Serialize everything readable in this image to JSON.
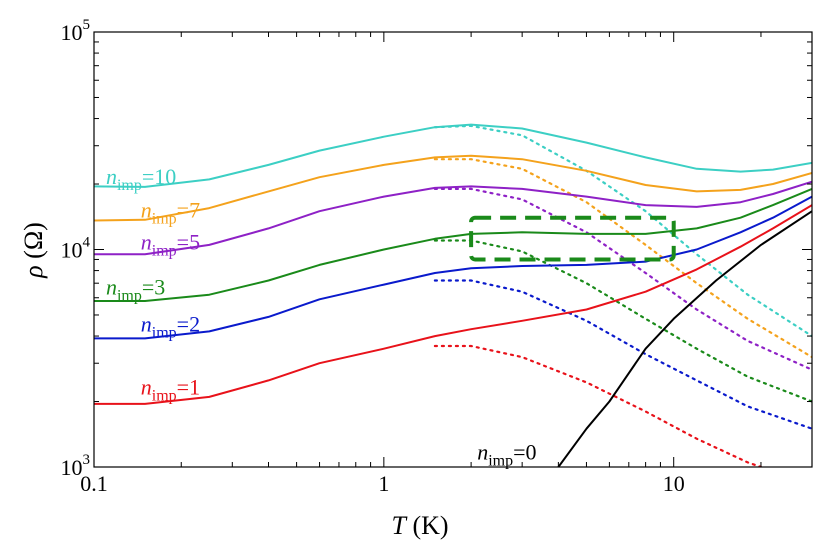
{
  "chart_data": {
    "type": "line",
    "xscale": "log",
    "yscale": "log",
    "xlim": [
      0.1,
      30
    ],
    "ylim": [
      1000,
      100000
    ],
    "xlabel": {
      "symbol": "T",
      "unit": " (K)"
    },
    "ylabel": {
      "symbol": "ρ",
      "unit": " (Ω)"
    },
    "xticks": [
      {
        "value": 0.1,
        "label": "0.1"
      },
      {
        "value": 1,
        "label": "1"
      },
      {
        "value": 10,
        "label": "10"
      }
    ],
    "yticks": [
      {
        "value": 1000,
        "base": "10",
        "exp": "3"
      },
      {
        "value": 10000,
        "base": "10",
        "exp": "4"
      },
      {
        "value": 100000,
        "base": "10",
        "exp": "5"
      }
    ],
    "grid": false,
    "legend": "inline labels",
    "annotation_box": {
      "x": [
        2,
        10
      ],
      "y": [
        9000,
        14000
      ],
      "color": "#1a8a1a",
      "style": "dashed"
    },
    "series": [
      {
        "label_main": "n",
        "label_sub": "imp",
        "label_val": "=10",
        "color": "#3ccfc4",
        "label_at": [
          0.11,
          20000
        ],
        "solid": [
          [
            0.1,
            19500
          ],
          [
            0.15,
            19400
          ],
          [
            0.25,
            21000
          ],
          [
            0.4,
            24500
          ],
          [
            0.6,
            28500
          ],
          [
            1,
            33000
          ],
          [
            1.5,
            36500
          ],
          [
            2,
            37500
          ],
          [
            3,
            36000
          ],
          [
            5,
            31000
          ],
          [
            8,
            26500
          ],
          [
            12,
            23500
          ],
          [
            17,
            22800
          ],
          [
            22,
            23300
          ],
          [
            30,
            25000
          ]
        ],
        "dotted": [
          [
            1.5,
            36500
          ],
          [
            2,
            37000
          ],
          [
            3,
            33500
          ],
          [
            5,
            23000
          ],
          [
            8,
            15000
          ],
          [
            12,
            9500
          ],
          [
            18,
            6200
          ],
          [
            30,
            4000
          ]
        ]
      },
      {
        "label_main": "n",
        "label_sub": "imp",
        "label_val": "=7",
        "color": "#f4a21c",
        "label_at": [
          0.145,
          14000
        ],
        "solid": [
          [
            0.1,
            13600
          ],
          [
            0.15,
            13700
          ],
          [
            0.25,
            15500
          ],
          [
            0.4,
            18500
          ],
          [
            0.6,
            21500
          ],
          [
            1,
            24500
          ],
          [
            1.5,
            26500
          ],
          [
            2,
            27000
          ],
          [
            3,
            26000
          ],
          [
            5,
            23000
          ],
          [
            8,
            19800
          ],
          [
            12,
            18500
          ],
          [
            17,
            18800
          ],
          [
            22,
            20000
          ],
          [
            30,
            22500
          ]
        ],
        "dotted": [
          [
            1.5,
            26000
          ],
          [
            2,
            26000
          ],
          [
            3,
            23500
          ],
          [
            5,
            16500
          ],
          [
            8,
            10500
          ],
          [
            12,
            7000
          ],
          [
            18,
            4800
          ],
          [
            30,
            3200
          ]
        ]
      },
      {
        "label_main": "n",
        "label_sub": "imp",
        "label_val": "=5",
        "color": "#8e21c6",
        "label_at": [
          0.145,
          10000
        ],
        "solid": [
          [
            0.1,
            9500
          ],
          [
            0.15,
            9500
          ],
          [
            0.25,
            10500
          ],
          [
            0.4,
            12500
          ],
          [
            0.6,
            15000
          ],
          [
            1,
            17500
          ],
          [
            1.5,
            19200
          ],
          [
            2,
            19500
          ],
          [
            3,
            19000
          ],
          [
            5,
            17500
          ],
          [
            8,
            16000
          ],
          [
            12,
            15700
          ],
          [
            17,
            16500
          ],
          [
            22,
            18000
          ],
          [
            30,
            20500
          ]
        ],
        "dotted": [
          [
            1.5,
            19000
          ],
          [
            2,
            19000
          ],
          [
            3,
            17000
          ],
          [
            5,
            12000
          ],
          [
            8,
            7800
          ],
          [
            12,
            5300
          ],
          [
            18,
            3800
          ],
          [
            30,
            2800
          ]
        ]
      },
      {
        "label_main": "n",
        "label_sub": "imp",
        "label_val": "=3",
        "color": "#1a8a1a",
        "label_at": [
          0.11,
          6200
        ],
        "solid": [
          [
            0.1,
            5800
          ],
          [
            0.15,
            5800
          ],
          [
            0.25,
            6200
          ],
          [
            0.4,
            7200
          ],
          [
            0.6,
            8500
          ],
          [
            1,
            10000
          ],
          [
            1.5,
            11200
          ],
          [
            2,
            11800
          ],
          [
            3,
            12000
          ],
          [
            5,
            11800
          ],
          [
            8,
            11800
          ],
          [
            12,
            12500
          ],
          [
            17,
            14000
          ],
          [
            22,
            16000
          ],
          [
            30,
            19000
          ]
        ],
        "dotted": [
          [
            1.5,
            11000
          ],
          [
            2,
            11000
          ],
          [
            3,
            9800
          ],
          [
            5,
            7000
          ],
          [
            8,
            4800
          ],
          [
            12,
            3500
          ],
          [
            18,
            2600
          ],
          [
            30,
            2000
          ]
        ]
      },
      {
        "label_main": "n",
        "label_sub": "imp",
        "label_val": "=2",
        "color": "#0a1acc",
        "label_at": [
          0.145,
          4200
        ],
        "solid": [
          [
            0.1,
            3900
          ],
          [
            0.15,
            3900
          ],
          [
            0.25,
            4200
          ],
          [
            0.4,
            4900
          ],
          [
            0.6,
            5900
          ],
          [
            1,
            6900
          ],
          [
            1.5,
            7800
          ],
          [
            2,
            8200
          ],
          [
            3,
            8400
          ],
          [
            5,
            8500
          ],
          [
            8,
            8800
          ],
          [
            12,
            10000
          ],
          [
            17,
            12000
          ],
          [
            22,
            14000
          ],
          [
            30,
            17500
          ]
        ],
        "dotted": [
          [
            1.5,
            7200
          ],
          [
            2,
            7200
          ],
          [
            3,
            6400
          ],
          [
            5,
            4700
          ],
          [
            8,
            3300
          ],
          [
            12,
            2500
          ],
          [
            18,
            1900
          ],
          [
            30,
            1500
          ]
        ]
      },
      {
        "label_main": "n",
        "label_sub": "imp",
        "label_val": "=1",
        "color": "#e8121a",
        "label_at": [
          0.145,
          2150
        ],
        "solid": [
          [
            0.1,
            1950
          ],
          [
            0.15,
            1950
          ],
          [
            0.25,
            2100
          ],
          [
            0.4,
            2500
          ],
          [
            0.6,
            3000
          ],
          [
            1,
            3500
          ],
          [
            1.5,
            4000
          ],
          [
            2,
            4300
          ],
          [
            3,
            4700
          ],
          [
            5,
            5300
          ],
          [
            8,
            6400
          ],
          [
            12,
            8100
          ],
          [
            17,
            10300
          ],
          [
            22,
            12500
          ],
          [
            30,
            16000
          ]
        ],
        "dotted": [
          [
            1.5,
            3600
          ],
          [
            2,
            3600
          ],
          [
            3,
            3200
          ],
          [
            5,
            2450
          ],
          [
            8,
            1800
          ],
          [
            12,
            1350
          ],
          [
            18,
            1050
          ],
          [
            20,
            1000
          ]
        ]
      },
      {
        "label_main": "n",
        "label_sub": "imp",
        "label_val": "=0",
        "color": "#000000",
        "label_at": [
          2.1,
          1080
        ],
        "solid": [
          [
            4,
            1000
          ],
          [
            5,
            1500
          ],
          [
            6,
            2000
          ],
          [
            8,
            3500
          ],
          [
            10,
            4800
          ],
          [
            14,
            7200
          ],
          [
            20,
            10500
          ],
          [
            30,
            15000
          ]
        ],
        "dotted": []
      }
    ]
  }
}
